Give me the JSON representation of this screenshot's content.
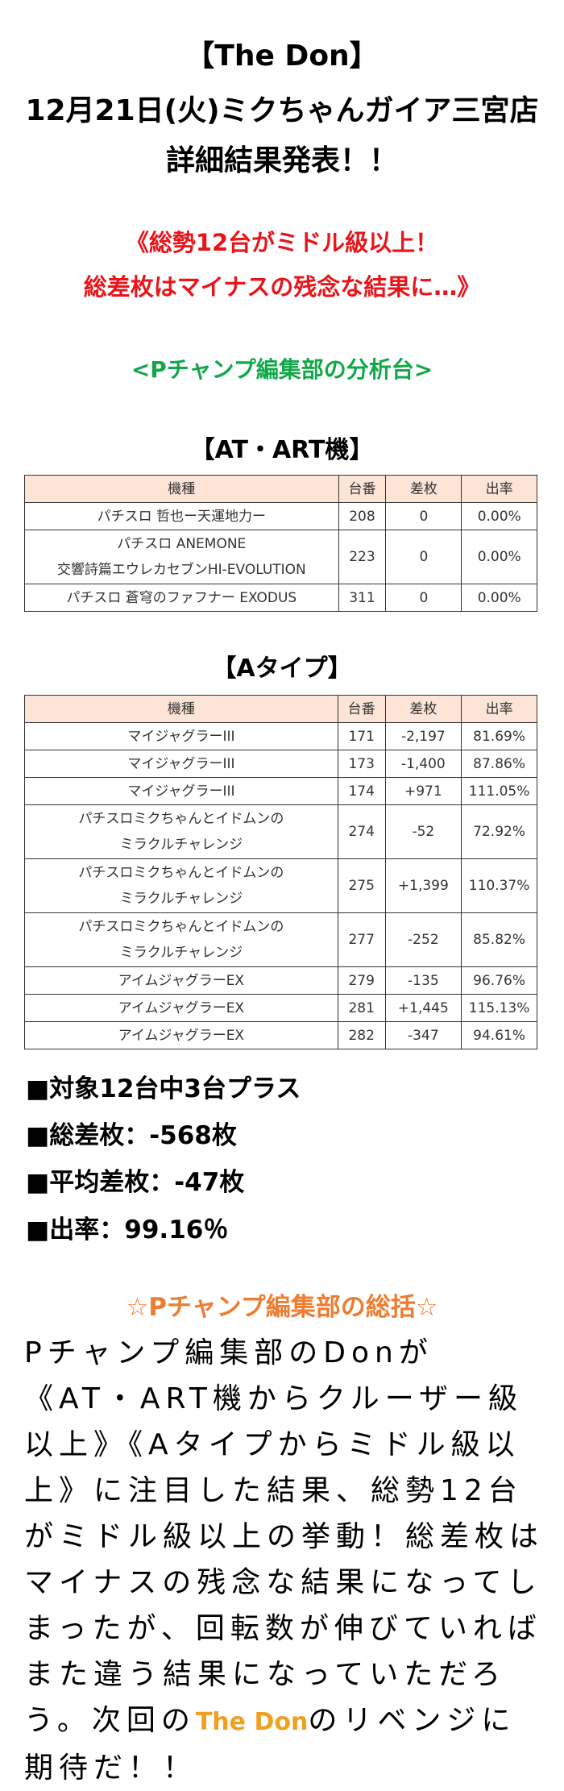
{
  "header": {
    "title": "【The Don】",
    "subtitle_1": "12月21日(火)ミクちゃんガイア三宮店",
    "subtitle_2": "詳細結果発表！！"
  },
  "headline": {
    "line_1": "《総勢12台がミドル級以上！",
    "line_2": "総差枚はマイナスの残念な結果に…》"
  },
  "section_label": "<Pチャンプ編集部の分析台>",
  "tables": [
    {
      "title": "【AT・ART機】",
      "columns": [
        "機種",
        "台番",
        "差枚",
        "出率"
      ],
      "rows": [
        [
          "パチスロ 哲也ー天運地力ー",
          "208",
          "0",
          "0.00%"
        ],
        [
          "パチスロ ANEMONE\n交響詩篇エウレカセブンHI-EVOLUTION",
          "223",
          "0",
          "0.00%"
        ],
        [
          "パチスロ 蒼穹のファフナー EXODUS",
          "311",
          "0",
          "0.00%"
        ]
      ]
    },
    {
      "title": "【Aタイプ】",
      "columns": [
        "機種",
        "台番",
        "差枚",
        "出率"
      ],
      "rows": [
        [
          "マイジャグラーIII",
          "171",
          "-2,197",
          "81.69%"
        ],
        [
          "マイジャグラーIII",
          "173",
          "-1,400",
          "87.86%"
        ],
        [
          "マイジャグラーIII",
          "174",
          "+971",
          "111.05%"
        ],
        [
          "パチスロミクちゃんとイドムンの\nミラクルチャレンジ",
          "274",
          "-52",
          "72.92%"
        ],
        [
          "パチスロミクちゃんとイドムンの\nミラクルチャレンジ",
          "275",
          "+1,399",
          "110.37%"
        ],
        [
          "パチスロミクちゃんとイドムンの\nミラクルチャレンジ",
          "277",
          "-252",
          "85.82%"
        ],
        [
          "アイムジャグラーEX",
          "279",
          "-135",
          "96.76%"
        ],
        [
          "アイムジャグラーEX",
          "281",
          "+1,445",
          "115.13%"
        ],
        [
          "アイムジャグラーEX",
          "282",
          "-347",
          "94.61%"
        ]
      ]
    }
  ],
  "summary": [
    "■対象12台中3台プラス",
    "■総差枚：-568枚",
    "■平均差枚：-47枚",
    "■出率：99.16％"
  ],
  "review": {
    "heading": "☆Pチャンプ編集部の総括☆",
    "paragraph": [
      "Pチャンプ編集部のDonが《AT・ART機からクルーザー級以上》《Aタイプからミドル級以上》に注目した結果、総勢12台がミドル級以上の挙動！総差枚はマイナスの残念な結果になってしまったが、回転数が伸びていればまた違う結果になっていただろう。次回の",
      "The Don",
      "のリベンジに期待だ！！"
    ]
  }
}
